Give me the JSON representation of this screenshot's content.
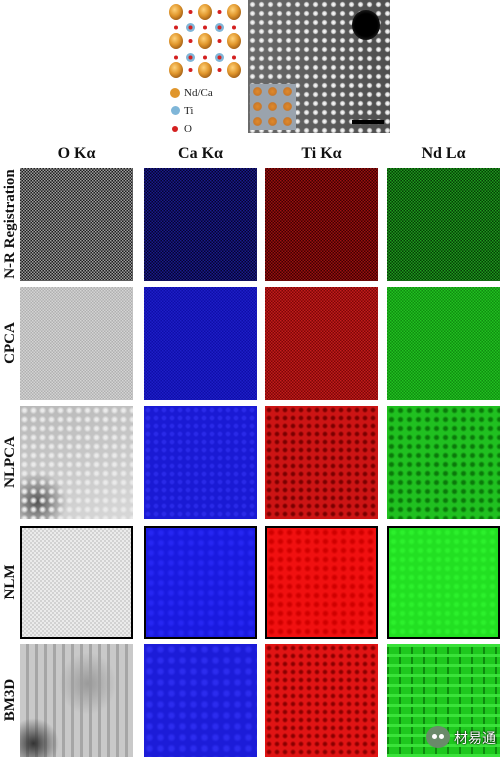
{
  "legend": [
    {
      "label": "Nd/Ca",
      "color": "#e0962c"
    },
    {
      "label": "Ti",
      "color": "#7fb6d8"
    },
    {
      "label": "O",
      "color": "#d42020"
    }
  ],
  "columns": [
    "O Kα",
    "Ca Kα",
    "Ti Kα",
    "Nd Lα"
  ],
  "rows": [
    "N-R Registration",
    "CPCA",
    "NLPCA",
    "NLM",
    "BM3D"
  ],
  "panel_colors": {
    "o": "#b4b4b4",
    "ca": "#1a1ad0",
    "ti": "#d01414",
    "nd": "#20c020"
  },
  "watermark": {
    "text": "材易通",
    "icon": "wechat-icon"
  }
}
